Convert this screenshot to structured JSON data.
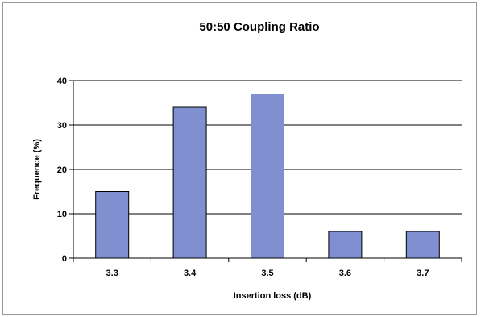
{
  "chart_data": {
    "type": "bar",
    "title": "50:50 Coupling Ratio",
    "xlabel": "Insertion loss (dB)",
    "ylabel": "Frequence (%)",
    "categories": [
      "3.3",
      "3.4",
      "3.5",
      "3.6",
      "3.7"
    ],
    "values": [
      15,
      34,
      37,
      6,
      6
    ],
    "ylim": [
      0,
      40
    ],
    "yticks": [
      "0",
      "10",
      "20",
      "30",
      "40"
    ],
    "grid": true,
    "bar_color": "#7f8fd0",
    "bar_edge_color": "#000000",
    "gridline_color": "#000000"
  }
}
